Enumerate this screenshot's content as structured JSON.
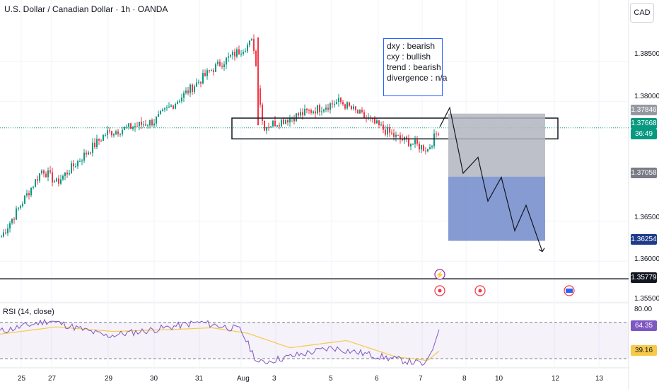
{
  "header": {
    "title": "U.S. Dollar / Canadian Dollar · 1h · OANDA",
    "currency": "CAD"
  },
  "annotation": {
    "lines": [
      "dxy : bearish",
      "cxy : bullish",
      "trend : bearish",
      "divergence : n/a"
    ]
  },
  "price_axis": {
    "ticks": [
      "1.38500",
      "1.38000",
      "1.36500",
      "1.36000",
      "1.35500"
    ]
  },
  "price_labels": {
    "target_top": "1.37846",
    "current": "1.37668",
    "countdown": "36:49",
    "entry": "1.37058",
    "stop": "1.36254",
    "support": "1.35779"
  },
  "rsi": {
    "label": "RSI (14, close)",
    "level_80": "80.00",
    "value": "64.35",
    "ma_value": "39.16"
  },
  "time_axis": {
    "labels": [
      "25",
      "27",
      "29",
      "30",
      "31",
      "Aug",
      "3",
      "5",
      "6",
      "7",
      "8",
      "10",
      "12",
      "13"
    ]
  },
  "chart_data": {
    "type": "candlestick",
    "title": "U.S. Dollar / Canadian Dollar · 1h · OANDA",
    "y_unit": "CAD",
    "ylim": [
      1.3548,
      1.3902
    ],
    "close_path_x_dates": [
      "Jul 24",
      "Jul 27",
      "Jul 28",
      "Jul 29",
      "Jul 30",
      "Jul 31",
      "Aug 1",
      "Aug 2",
      "Aug 5",
      "Aug 6",
      "Aug 7"
    ],
    "close_path_y": [
      1.3628,
      1.3715,
      1.3698,
      1.376,
      1.3775,
      1.384,
      1.3875,
      1.3768,
      1.38,
      1.3755,
      1.374
    ],
    "current_price": 1.37668,
    "resistance_zone": [
      1.3753,
      1.3779
    ],
    "horizontal_line": 1.35779,
    "projection_path": [
      1.3768,
      1.3792,
      1.371,
      1.373,
      1.3675,
      1.3705,
      1.3638,
      1.367,
      1.3612
    ],
    "rsi_ylim": [
      20,
      90
    ],
    "rsi_levels": [
      70,
      30
    ],
    "rsi_last": 64.35,
    "rsi_ma_last": 39.16
  },
  "colors": {
    "up": "#089981",
    "down": "#f23645",
    "rsi": "#7e57c2",
    "rsi_ma": "#f7c948",
    "box_profit": "#7890cd",
    "box_loss": "#b2b5be"
  }
}
